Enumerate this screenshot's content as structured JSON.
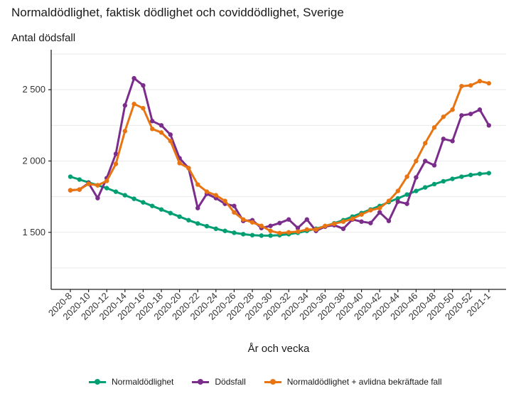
{
  "chart_data": {
    "type": "line",
    "title": "Normaldödlighet, faktisk dödlighet och coviddödlighet, Sverige",
    "ylabel": "Antal dödsfall",
    "xlabel": "År och vecka",
    "ylim": [
      1100,
      2780
    ],
    "yticks": [
      1500,
      2000,
      2500
    ],
    "ytick_labels": [
      "1 500",
      "2 000",
      "2 500"
    ],
    "xtick_labels": [
      "2020-8",
      "2020-10",
      "2020-12",
      "2020-14",
      "2020-16",
      "2020-18",
      "2020-20",
      "2020-22",
      "2020-24",
      "2020-26",
      "2020-28",
      "2020-30",
      "2020-32",
      "2020-34",
      "2020-36",
      "2020-38",
      "2020-40",
      "2020-42",
      "2020-44",
      "2020-46",
      "2020-48",
      "2020-50",
      "2020-52",
      "2021-1"
    ],
    "x": [
      "2020-8",
      "2020-9",
      "2020-10",
      "2020-11",
      "2020-12",
      "2020-13",
      "2020-14",
      "2020-15",
      "2020-16",
      "2020-17",
      "2020-18",
      "2020-19",
      "2020-20",
      "2020-21",
      "2020-22",
      "2020-23",
      "2020-24",
      "2020-25",
      "2020-26",
      "2020-27",
      "2020-28",
      "2020-29",
      "2020-30",
      "2020-31",
      "2020-32",
      "2020-33",
      "2020-34",
      "2020-35",
      "2020-36",
      "2020-37",
      "2020-38",
      "2020-39",
      "2020-40",
      "2020-41",
      "2020-42",
      "2020-43",
      "2020-44",
      "2020-45",
      "2020-46",
      "2020-47",
      "2020-48",
      "2020-49",
      "2020-50",
      "2020-51",
      "2020-52",
      "2020-53",
      "2021-1"
    ],
    "series": [
      {
        "name": "Normaldödlighet",
        "color": "#009E73",
        "values": [
          1890,
          1870,
          1850,
          1830,
          1810,
          1785,
          1760,
          1735,
          1710,
          1685,
          1660,
          1635,
          1610,
          1585,
          1562,
          1543,
          1525,
          1510,
          1497,
          1487,
          1480,
          1477,
          1477,
          1480,
          1487,
          1497,
          1510,
          1525,
          1543,
          1563,
          1585,
          1610,
          1635,
          1660,
          1685,
          1712,
          1738,
          1765,
          1790,
          1815,
          1838,
          1858,
          1875,
          1890,
          1902,
          1910,
          1915
        ]
      },
      {
        "name": "Dödsfall",
        "color": "#7B2D8B",
        "values": [
          1795,
          1800,
          1845,
          1740,
          1880,
          2050,
          2390,
          2580,
          2530,
          2280,
          2250,
          2185,
          2020,
          1950,
          1670,
          1770,
          1740,
          1700,
          1685,
          1580,
          1585,
          1530,
          1545,
          1565,
          1590,
          1530,
          1590,
          1510,
          1540,
          1550,
          1525,
          1590,
          1575,
          1565,
          1640,
          1580,
          1715,
          1700,
          1885,
          2000,
          1970,
          2155,
          2140,
          2320,
          2330,
          2360,
          2250
        ]
      },
      {
        "name": "Normaldödlighet + avlidna bekräftade fall",
        "color": "#E87511",
        "values": [
          1795,
          1800,
          1840,
          1830,
          1860,
          1980,
          2210,
          2400,
          2370,
          2225,
          2200,
          2140,
          1985,
          1950,
          1835,
          1785,
          1760,
          1720,
          1640,
          1590,
          1570,
          1545,
          1510,
          1495,
          1500,
          1505,
          1520,
          1520,
          1545,
          1560,
          1575,
          1595,
          1625,
          1655,
          1670,
          1720,
          1790,
          1890,
          2000,
          2125,
          2235,
          2310,
          2360,
          2525,
          2530,
          2560,
          2545
        ]
      }
    ],
    "legend_position": "bottom"
  }
}
